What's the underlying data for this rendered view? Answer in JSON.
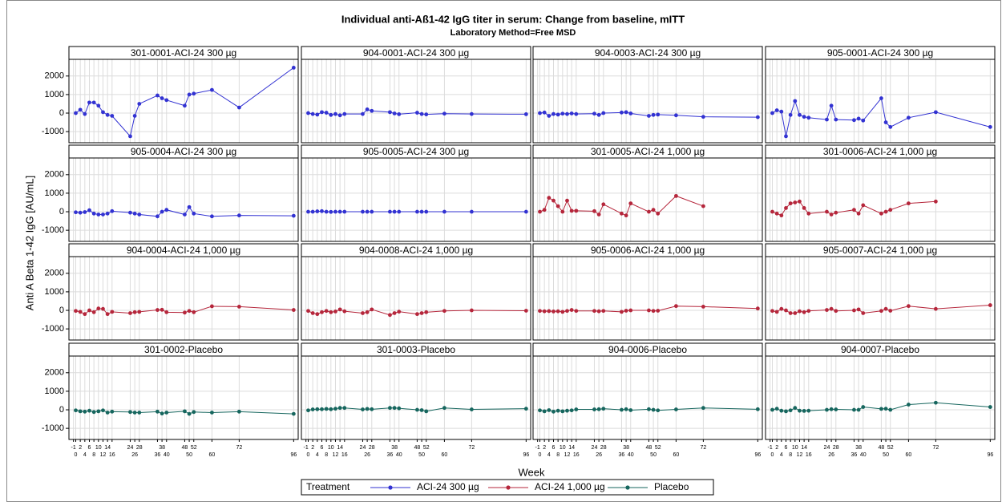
{
  "chart_data": {
    "type": "line",
    "title": "Individual anti-Aß1-42 IgG titer in serum: Change from baseline, mITT",
    "subtitle": "Laboratory Method=Free MSD",
    "x_label": "Week",
    "y_label": "Anti A Beta 1-42 IgG [AU/mL]",
    "legend_title": "Treatment",
    "grid": true,
    "xlim": [
      -3,
      98
    ],
    "xticks": [
      -1,
      0,
      2,
      4,
      6,
      8,
      10,
      12,
      14,
      16,
      24,
      26,
      28,
      36,
      38,
      40,
      48,
      50,
      52,
      60,
      72,
      96
    ],
    "ylim": [
      -1600,
      2900
    ],
    "yticks": [
      -1000,
      0,
      1000,
      2000
    ],
    "x": [
      0,
      2,
      4,
      6,
      8,
      10,
      12,
      14,
      16,
      24,
      26,
      28,
      36,
      38,
      40,
      48,
      50,
      52,
      60,
      72,
      96
    ],
    "series": [
      {
        "name": "ACI-24 300 µg",
        "color": "#3232d2"
      },
      {
        "name": "ACI-24 1,000 µg",
        "color": "#b5263b"
      },
      {
        "name": "Placebo",
        "color": "#16665e"
      }
    ],
    "panels": [
      {
        "title": "301-0001-ACI-24 300 µg",
        "name": "ACI-24 300 µg",
        "values": [
          0,
          180,
          -50,
          570,
          570,
          400,
          50,
          -100,
          -150,
          -1250,
          -150,
          500,
          950,
          800,
          700,
          400,
          1000,
          1050,
          1250,
          300,
          2450
        ]
      },
      {
        "title": "904-0001-ACI-24 300 µg",
        "name": "ACI-24 300 µg",
        "values": [
          0,
          -50,
          -80,
          50,
          20,
          -100,
          -50,
          -120,
          -50,
          -50,
          200,
          120,
          50,
          -20,
          -60,
          20,
          -50,
          -70,
          -30,
          -50,
          -60
        ]
      },
      {
        "title": "904-0003-ACI-24 300 µg",
        "name": "ACI-24 300 µg",
        "values": [
          0,
          30,
          -150,
          -50,
          -80,
          -30,
          -50,
          -20,
          -50,
          -30,
          -100,
          0,
          30,
          50,
          -20,
          -150,
          -100,
          -80,
          -120,
          -200,
          -220
        ]
      },
      {
        "title": "905-0001-ACI-24 300 µg",
        "name": "ACI-24 300 µg",
        "values": [
          0,
          150,
          80,
          -1250,
          -100,
          650,
          -100,
          -200,
          -250,
          -350,
          400,
          -350,
          -380,
          -300,
          -400,
          800,
          -500,
          -750,
          -250,
          50,
          -750
        ]
      },
      {
        "title": "905-0004-ACI-24 300 µg",
        "name": "ACI-24 300 µg",
        "values": [
          -30,
          -50,
          -20,
          80,
          -100,
          -150,
          -150,
          -100,
          30,
          -50,
          -100,
          -150,
          -250,
          0,
          100,
          -150,
          250,
          -100,
          -250,
          -200,
          -220
        ]
      },
      {
        "title": "905-0005-ACI-24 300 µg",
        "name": "ACI-24 300 µg",
        "values": [
          0,
          0,
          20,
          30,
          0,
          -10,
          0,
          0,
          0,
          0,
          0,
          0,
          0,
          0,
          0,
          0,
          0,
          0,
          0,
          0,
          0
        ]
      },
      {
        "title": "301-0005-ACI-24 1,000 µg",
        "name": "ACI-24 1,000 µg",
        "values": [
          0,
          100,
          750,
          600,
          300,
          0,
          600,
          50,
          50,
          30,
          -150,
          400,
          -100,
          -200,
          450,
          0,
          100,
          -100,
          850,
          300,
          null
        ]
      },
      {
        "title": "301-0006-ACI-24 1,000 µg",
        "name": "ACI-24 1,000 µg",
        "values": [
          0,
          -100,
          -200,
          200,
          450,
          500,
          550,
          200,
          -100,
          0,
          -150,
          -50,
          100,
          -100,
          350,
          -100,
          0,
          100,
          450,
          550,
          null
        ]
      },
      {
        "title": "904-0004-ACI-24 1,000 µg",
        "name": "ACI-24 1,000 µg",
        "values": [
          -30,
          -80,
          -200,
          0,
          -100,
          100,
          80,
          -200,
          -80,
          -150,
          -100,
          -80,
          20,
          30,
          -100,
          -120,
          -30,
          -100,
          220,
          200,
          20
        ]
      },
      {
        "title": "904-0008-ACI-24 1,000 µg",
        "name": "ACI-24 1,000 µg",
        "values": [
          -30,
          -150,
          -200,
          -100,
          -30,
          -100,
          -60,
          50,
          -50,
          -150,
          -100,
          50,
          -250,
          -150,
          -70,
          -200,
          -150,
          -100,
          -30,
          0,
          -20
        ]
      },
      {
        "title": "905-0006-ACI-24 1,000 µg",
        "name": "ACI-24 1,000 µg",
        "values": [
          -30,
          -50,
          -40,
          -60,
          -50,
          -80,
          -30,
          20,
          -30,
          -30,
          -50,
          -30,
          -80,
          -20,
          0,
          0,
          -30,
          -20,
          230,
          200,
          100
        ]
      },
      {
        "title": "905-0007-ACI-24 1,000 µg",
        "name": "ACI-24 1,000 µg",
        "values": [
          -30,
          -80,
          80,
          0,
          -150,
          -150,
          -50,
          -100,
          -30,
          20,
          80,
          -30,
          0,
          50,
          -150,
          -30,
          80,
          -20,
          230,
          80,
          280
        ]
      },
      {
        "title": "301-0002-Placebo",
        "name": "Placebo",
        "values": [
          -30,
          -80,
          -100,
          -50,
          -120,
          -80,
          -30,
          -150,
          -100,
          -120,
          -150,
          -150,
          -100,
          -200,
          -150,
          -80,
          -220,
          -120,
          -150,
          -100,
          -220
        ]
      },
      {
        "title": "301-0003-Placebo",
        "name": "Placebo",
        "values": [
          -30,
          20,
          30,
          30,
          50,
          30,
          60,
          100,
          100,
          20,
          50,
          30,
          100,
          100,
          80,
          0,
          -20,
          -80,
          100,
          20,
          60
        ]
      },
      {
        "title": "904-0006-Placebo",
        "name": "Placebo",
        "values": [
          -30,
          -80,
          -20,
          -100,
          -50,
          -80,
          -50,
          -30,
          20,
          20,
          30,
          60,
          0,
          30,
          -20,
          30,
          0,
          -30,
          20,
          100,
          30
        ]
      },
      {
        "title": "904-0007-Placebo",
        "name": "Placebo",
        "values": [
          0,
          60,
          -50,
          -80,
          -30,
          100,
          -50,
          -60,
          -50,
          0,
          30,
          20,
          0,
          0,
          150,
          50,
          60,
          0,
          280,
          380,
          150
        ]
      }
    ]
  }
}
